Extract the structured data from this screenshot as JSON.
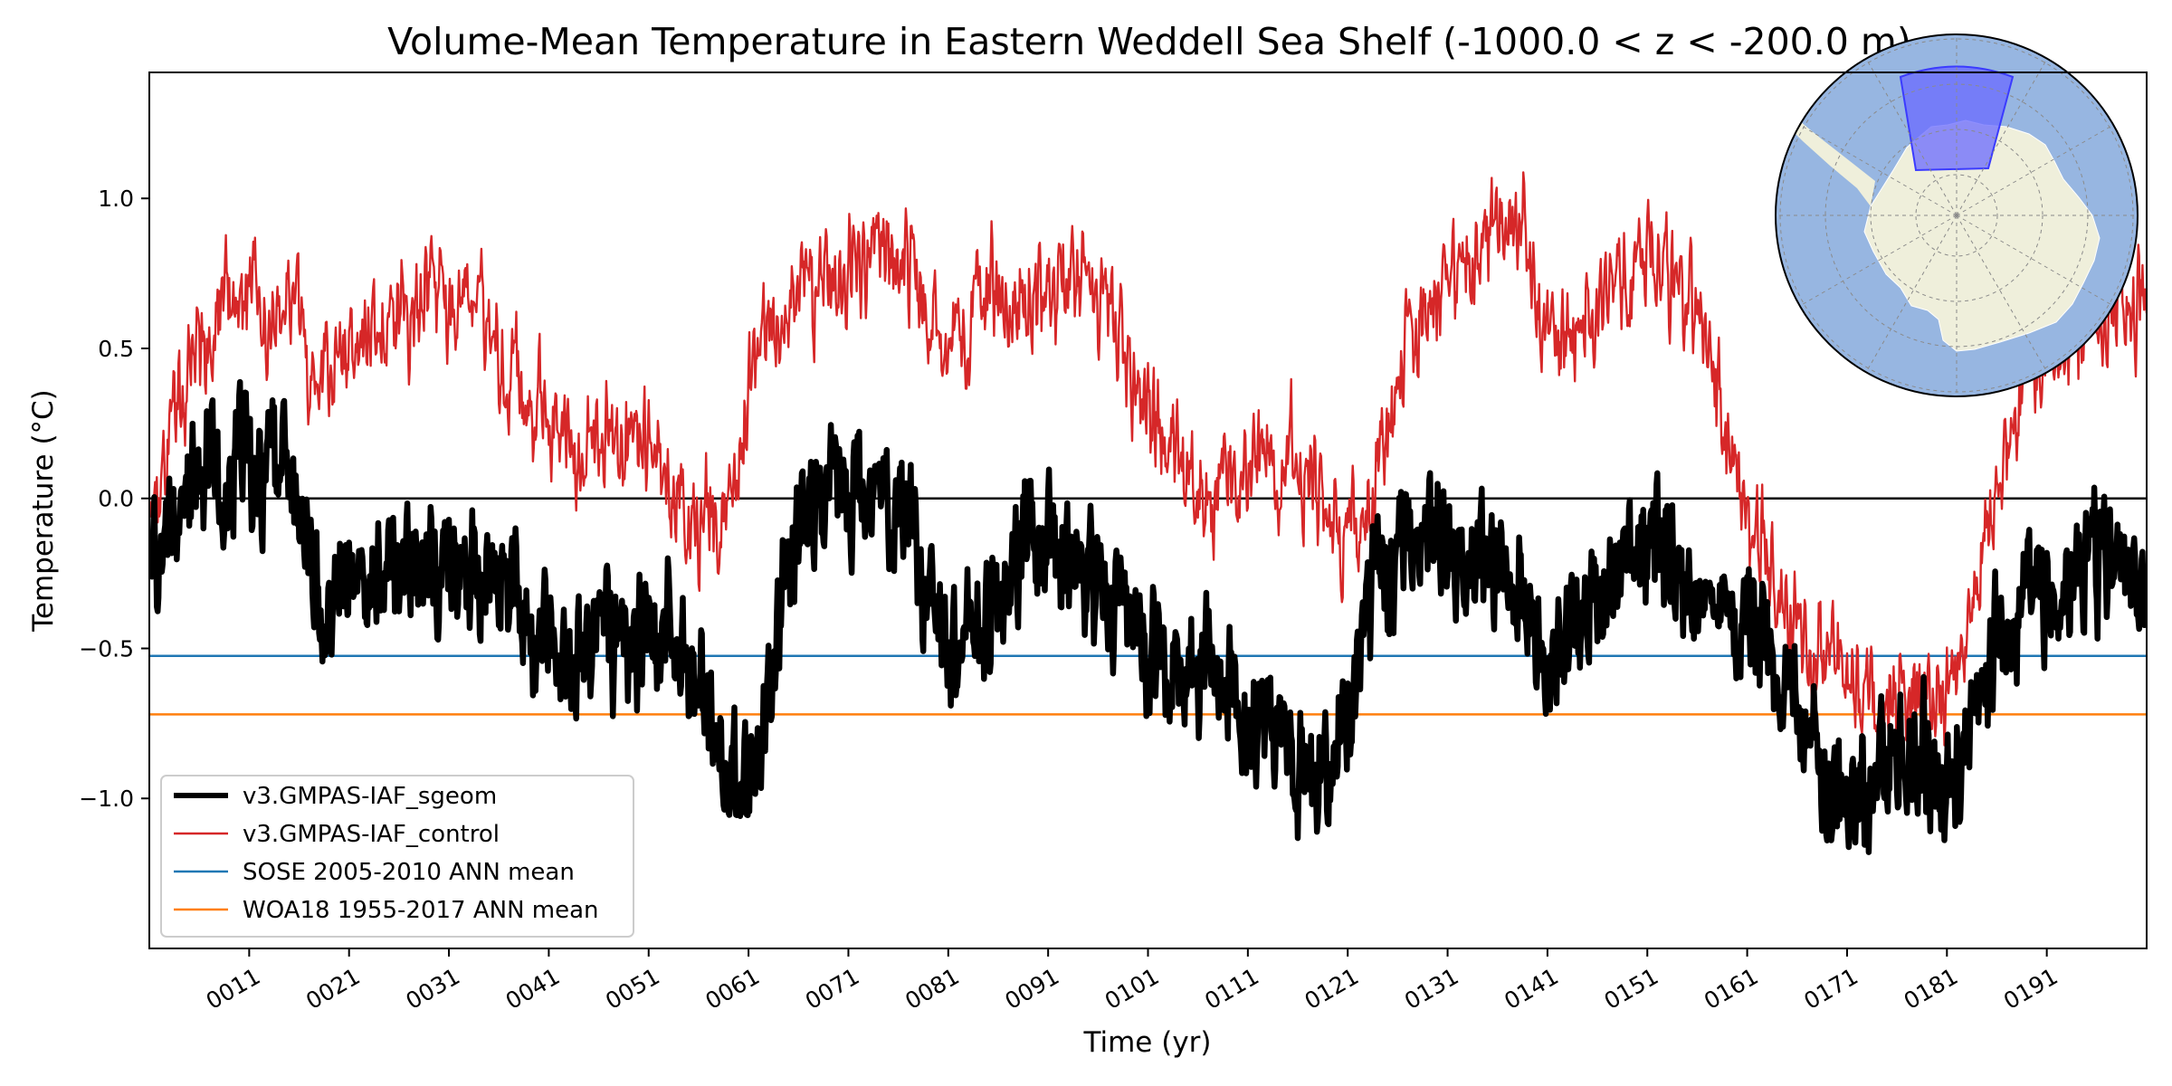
{
  "chart_data": {
    "type": "line",
    "title": "Volume-Mean Temperature in Eastern Weddell Sea Shelf (-1000.0 < z < -200.0 m)",
    "xlabel": "Time (yr)",
    "ylabel": "Temperature (°C)",
    "xlim": [
      1,
      201
    ],
    "ylim": [
      -1.5,
      1.42
    ],
    "x_ticks": [
      11,
      21,
      31,
      41,
      51,
      61,
      71,
      81,
      91,
      101,
      111,
      121,
      131,
      141,
      151,
      161,
      171,
      181,
      191
    ],
    "x_tick_labels": [
      "0011",
      "0021",
      "0031",
      "0041",
      "0051",
      "0061",
      "0071",
      "0081",
      "0091",
      "0101",
      "0111",
      "0121",
      "0131",
      "0141",
      "0151",
      "0161",
      "0171",
      "0181",
      "0191"
    ],
    "y_ticks": [
      -1.0,
      -0.5,
      0.0,
      0.5,
      1.0
    ],
    "y_tick_labels": [
      "−1.0",
      "−0.5",
      "0.0",
      "0.5",
      "1.0"
    ],
    "grid": false,
    "legend_position": "lower-left",
    "zero_line": 0.0,
    "series": [
      {
        "name": "v3.GMPAS-IAF_sgeom",
        "color": "#000000",
        "style": "thick-line",
        "envelope_x": [
          1,
          3,
          6,
          9,
          12,
          15,
          17,
          18,
          21,
          24,
          27,
          30,
          33,
          36,
          38,
          40,
          42,
          44,
          47,
          50,
          53,
          56,
          59,
          60,
          62,
          65,
          68,
          71,
          74,
          77,
          80,
          81,
          83,
          86,
          89,
          92,
          95,
          98,
          101,
          104,
          107,
          110,
          113,
          116,
          119,
          122,
          124,
          127,
          130,
          133,
          136,
          139,
          141,
          143,
          146,
          149,
          152,
          155,
          158,
          161,
          163,
          166,
          169,
          171,
          173,
          176,
          179,
          182,
          184,
          186,
          189,
          192,
          195,
          198,
          201
        ],
        "envelope_center": [
          -0.25,
          -0.05,
          0.05,
          0.12,
          0.08,
          0.02,
          -0.1,
          -0.35,
          -0.25,
          -0.2,
          -0.25,
          -0.22,
          -0.18,
          -0.25,
          -0.35,
          -0.5,
          -0.58,
          -0.5,
          -0.45,
          -0.5,
          -0.45,
          -0.62,
          -0.9,
          -1.05,
          -0.85,
          -0.2,
          0.0,
          0.08,
          0.05,
          -0.05,
          -0.4,
          -0.55,
          -0.5,
          -0.35,
          -0.12,
          -0.2,
          -0.28,
          -0.35,
          -0.45,
          -0.55,
          -0.6,
          -0.62,
          -0.75,
          -0.85,
          -0.92,
          -0.65,
          -0.25,
          -0.2,
          -0.15,
          -0.22,
          -0.28,
          -0.35,
          -0.55,
          -0.5,
          -0.35,
          -0.2,
          -0.12,
          -0.25,
          -0.38,
          -0.45,
          -0.55,
          -0.72,
          -0.95,
          -1.02,
          -0.98,
          -0.78,
          -0.88,
          -0.95,
          -0.75,
          -0.5,
          -0.35,
          -0.25,
          -0.2,
          -0.15,
          -0.35
        ],
        "envelope_amplitude": 0.17
      },
      {
        "name": "v3.GMPAS-IAF_control",
        "color": "#d62728",
        "style": "thin-line",
        "envelope_x": [
          1,
          3,
          5,
          8,
          11,
          14,
          16,
          17,
          20,
          23,
          26,
          29,
          32,
          35,
          38,
          41,
          44,
          47,
          50,
          53,
          56,
          58,
          60,
          62,
          65,
          68,
          71,
          74,
          77,
          80,
          81,
          83,
          86,
          89,
          92,
          95,
          98,
          101,
          104,
          107,
          110,
          113,
          116,
          119,
          121,
          123,
          125,
          128,
          131,
          134,
          137,
          139,
          141,
          144,
          147,
          150,
          153,
          156,
          159,
          162,
          165,
          168,
          171,
          174,
          177,
          180,
          182,
          184,
          186,
          189,
          192,
          195,
          198,
          201
        ],
        "envelope_center": [
          -0.1,
          0.15,
          0.4,
          0.6,
          0.68,
          0.65,
          0.55,
          0.3,
          0.45,
          0.55,
          0.62,
          0.68,
          0.7,
          0.6,
          0.4,
          0.22,
          0.18,
          0.25,
          0.2,
          0.05,
          -0.05,
          -0.1,
          0.1,
          0.5,
          0.65,
          0.68,
          0.8,
          0.85,
          0.78,
          0.6,
          0.55,
          0.58,
          0.68,
          0.72,
          0.7,
          0.68,
          0.55,
          0.3,
          0.1,
          0.0,
          0.05,
          0.15,
          0.1,
          -0.05,
          -0.18,
          -0.1,
          0.3,
          0.55,
          0.7,
          0.85,
          0.95,
          0.9,
          0.5,
          0.58,
          0.7,
          0.8,
          0.75,
          0.55,
          0.2,
          -0.2,
          -0.4,
          -0.55,
          -0.65,
          -0.7,
          -0.65,
          -0.68,
          -0.55,
          -0.25,
          0.1,
          0.4,
          0.5,
          0.6,
          0.7,
          0.65
        ],
        "envelope_amplitude": 0.15
      },
      {
        "name": "SOSE 2005-2010 ANN mean",
        "color": "#1f77b4",
        "style": "horizontal-line",
        "value": -0.525
      },
      {
        "name": "WOA18 1955-2017 ANN mean",
        "color": "#ff7f0e",
        "style": "horizontal-line",
        "value": -0.72
      }
    ],
    "inset_map": {
      "type": "south-polar-stereographic-map",
      "ocean_color": "#97b6e1",
      "land_color": "#efefdb",
      "region_color": "#6a6aff"
    }
  }
}
